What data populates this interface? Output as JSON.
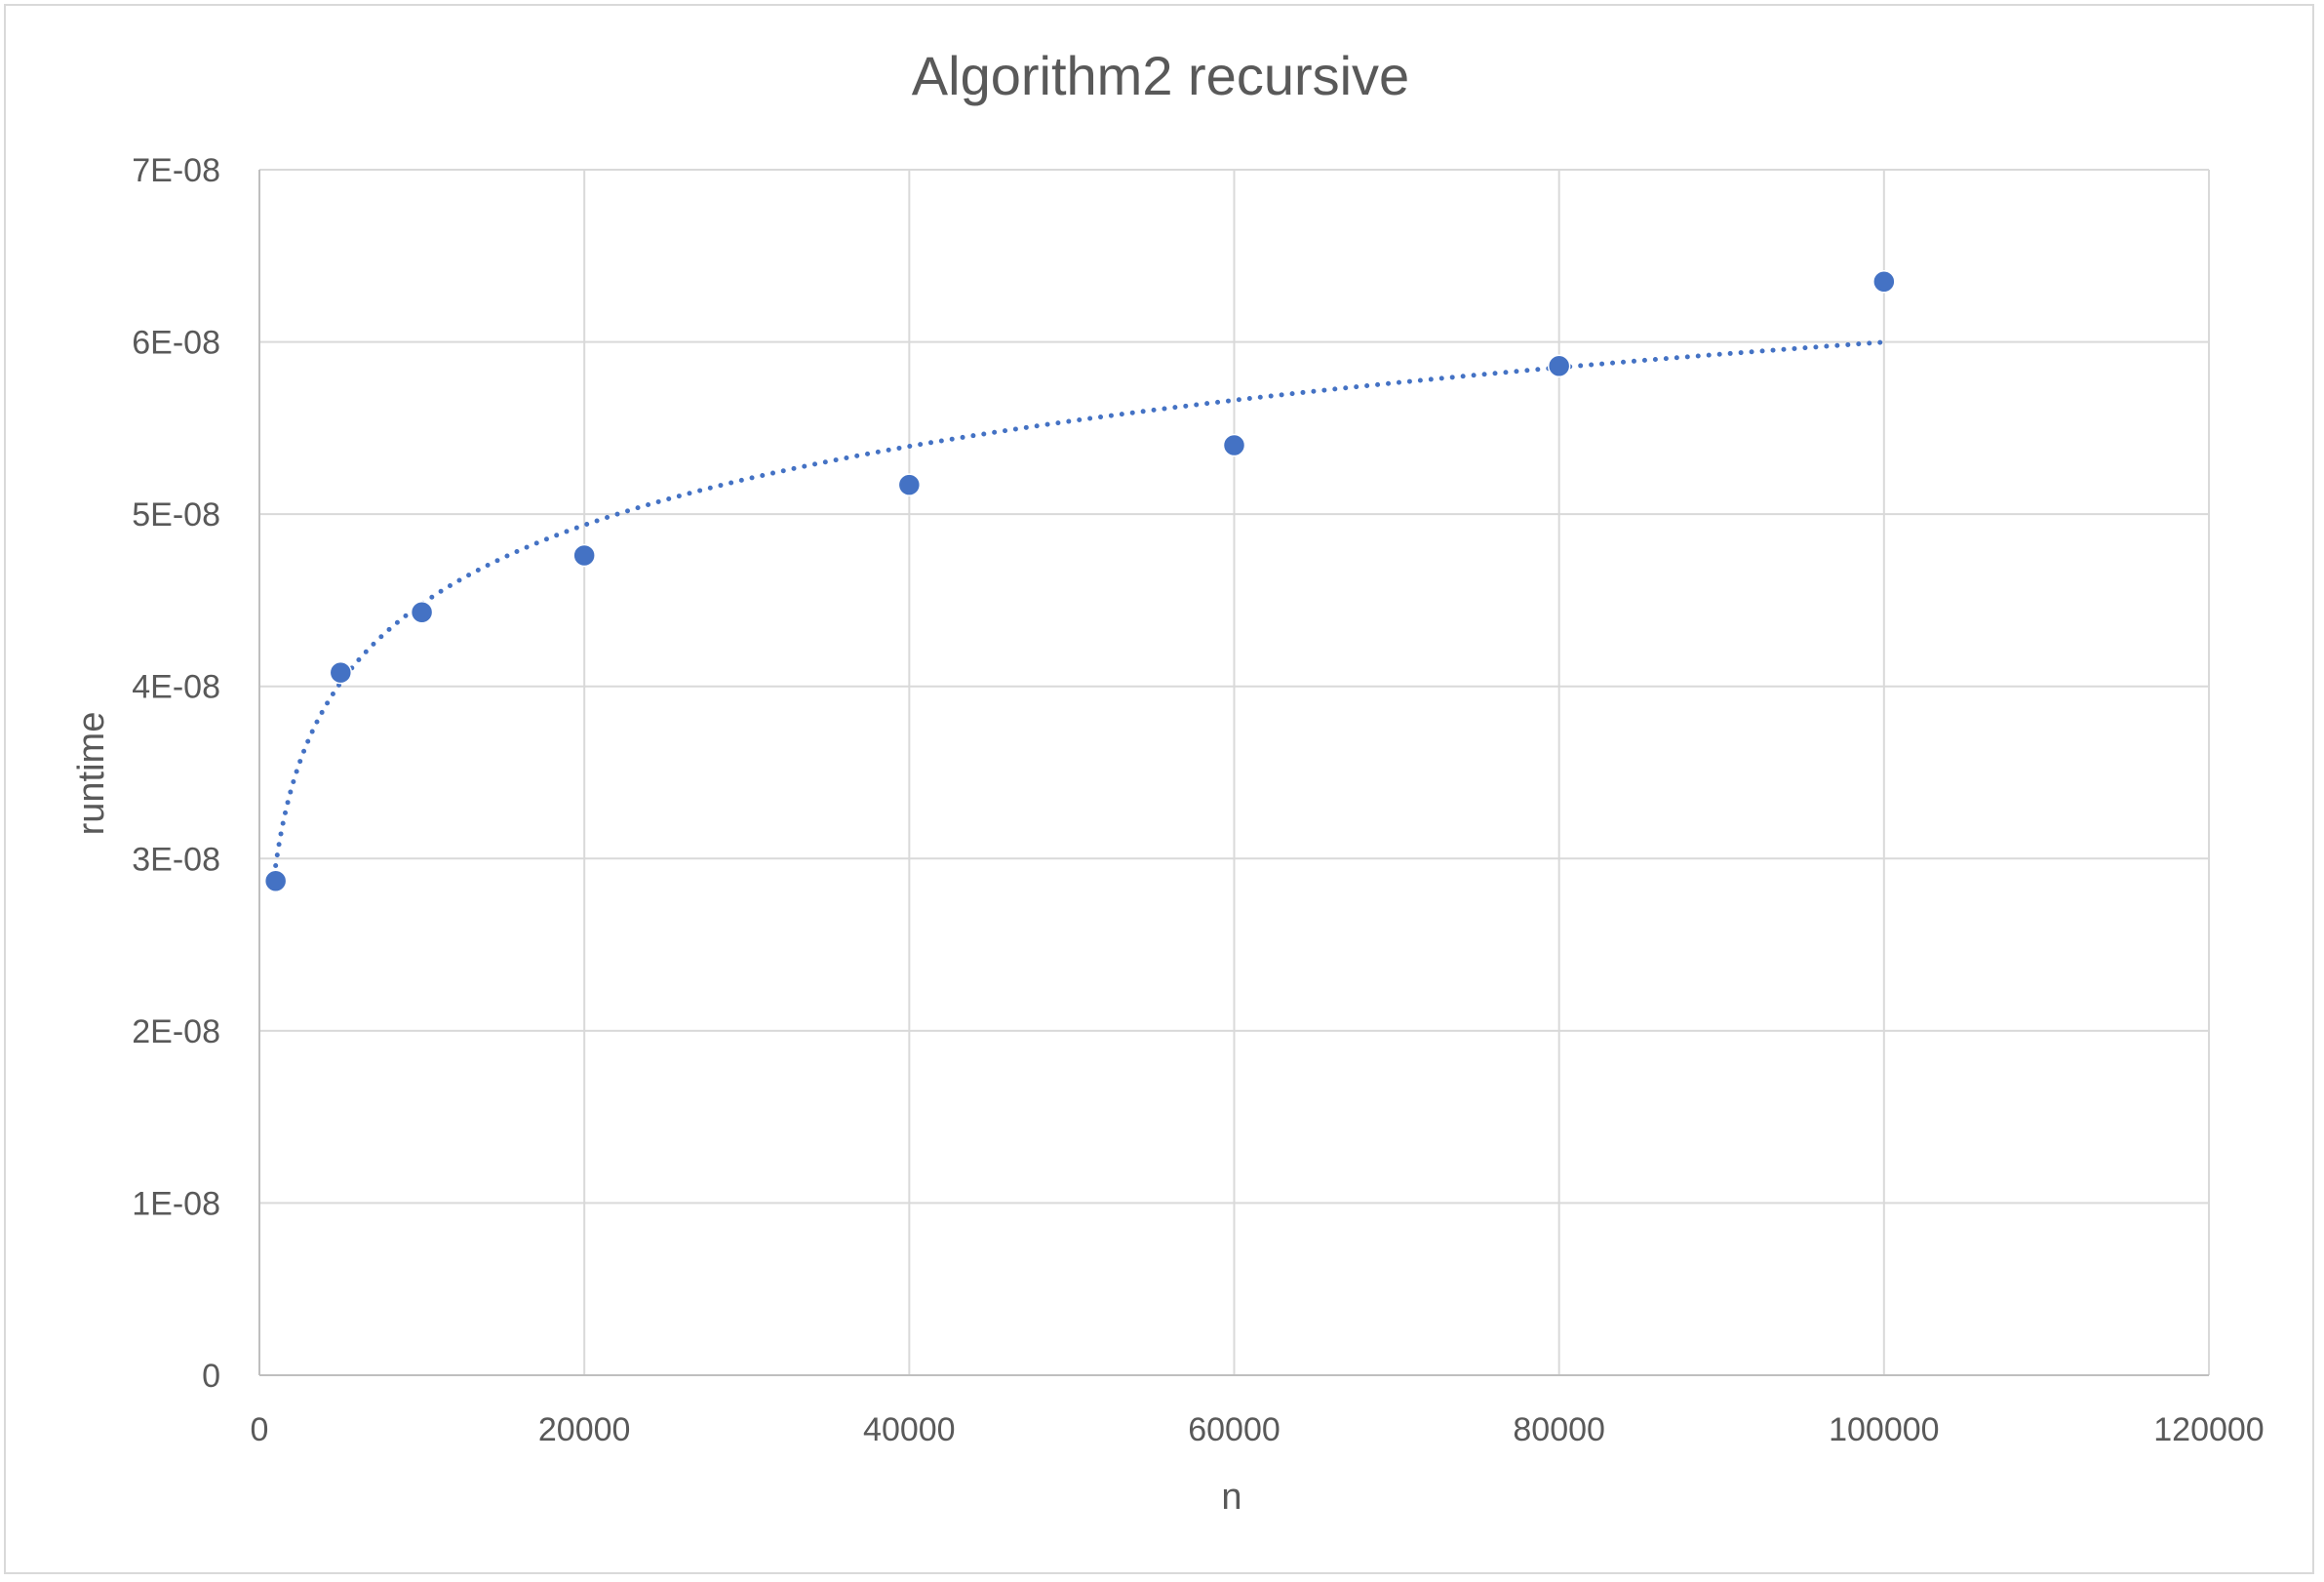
{
  "chart_data": {
    "type": "scatter",
    "title": "Algorithm2 recursive",
    "xlabel": "n",
    "ylabel": "runtime",
    "xlim": [
      0,
      120000
    ],
    "ylim": [
      0,
      7e-08
    ],
    "x_ticks": [
      0,
      20000,
      40000,
      60000,
      80000,
      100000,
      120000
    ],
    "x_tick_labels": [
      "0",
      "20000",
      "40000",
      "60000",
      "80000",
      "100000",
      "120000"
    ],
    "y_ticks": [
      0,
      1e-08,
      2e-08,
      3e-08,
      4e-08,
      5e-08,
      6e-08,
      7e-08
    ],
    "y_tick_labels": [
      "0",
      "1E-08",
      "2E-08",
      "3E-08",
      "4E-08",
      "5E-08",
      "6E-08",
      "7E-08"
    ],
    "grid": true,
    "marker_color": "#4472c4",
    "trendline_color": "#4472c4",
    "series": [
      {
        "x": [
          1000,
          5000,
          10000,
          20000,
          40000,
          60000,
          80000,
          100000
        ],
        "y": [
          2.87e-08,
          4.08e-08,
          4.43e-08,
          4.76e-08,
          5.17e-08,
          5.4e-08,
          5.86e-08,
          6.35e-08
        ]
      }
    ],
    "trendline": {
      "type": "logarithmic",
      "style": "dotted",
      "x_range": [
        1000,
        100000
      ],
      "coefficient": 6.6e-09,
      "intercept": -1.6e-08
    }
  }
}
